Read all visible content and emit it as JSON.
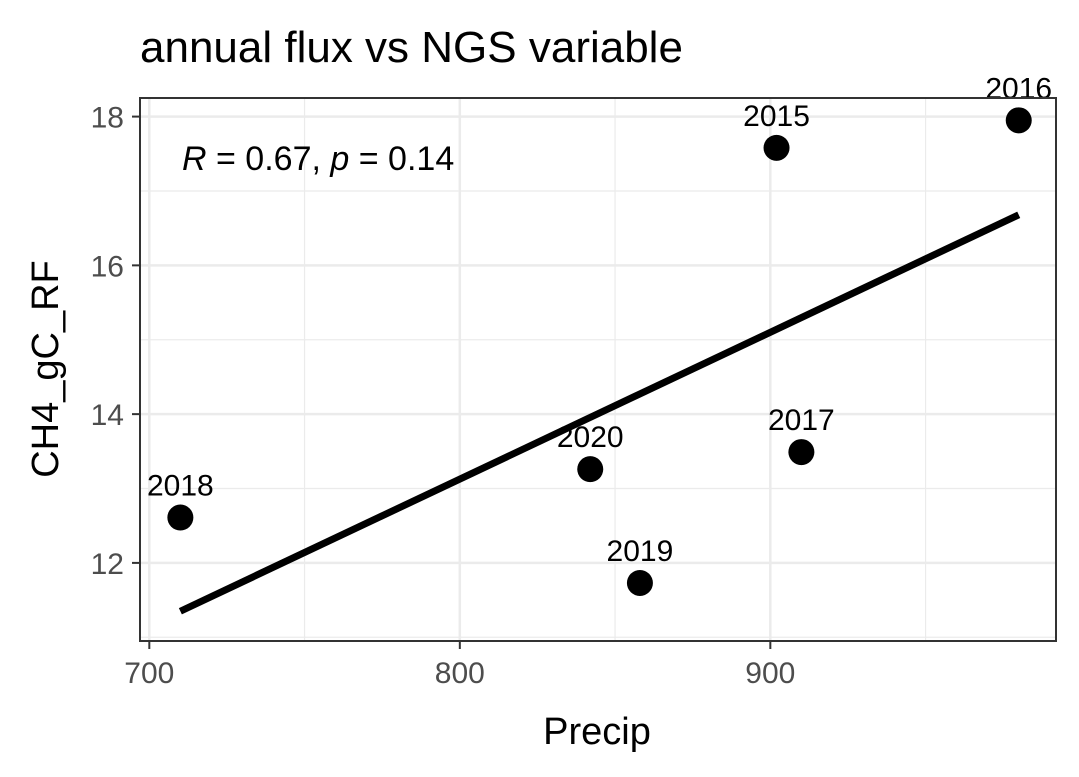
{
  "chart_data": {
    "type": "scatter",
    "title": "annual flux vs NGS variable",
    "xlabel": "Precip",
    "ylabel": "CH4_gC_RF",
    "xlim": [
      697,
      992
    ],
    "ylim": [
      10.95,
      18.25
    ],
    "x_ticks": [
      700,
      800,
      900
    ],
    "y_ticks": [
      12,
      14,
      16,
      18
    ],
    "grid": true,
    "points": [
      {
        "label": "2015",
        "x": 902,
        "y": 17.58
      },
      {
        "label": "2016",
        "x": 980,
        "y": 17.95
      },
      {
        "label": "2017",
        "x": 910,
        "y": 13.49
      },
      {
        "label": "2018",
        "x": 710,
        "y": 12.61
      },
      {
        "label": "2019",
        "x": 858,
        "y": 11.73
      },
      {
        "label": "2020",
        "x": 842,
        "y": 13.26
      }
    ],
    "fit_line": {
      "x": [
        710,
        980
      ],
      "y": [
        11.35,
        16.68
      ]
    },
    "stat": {
      "r_symbol": "R",
      "r_text": " = 0.67, ",
      "p_symbol": "p",
      "p_text": " = 0.14"
    },
    "colors": {
      "points": "#000000",
      "fit_line": "#000000",
      "grid": "#ebebeb",
      "panel_border": "#333333"
    }
  }
}
